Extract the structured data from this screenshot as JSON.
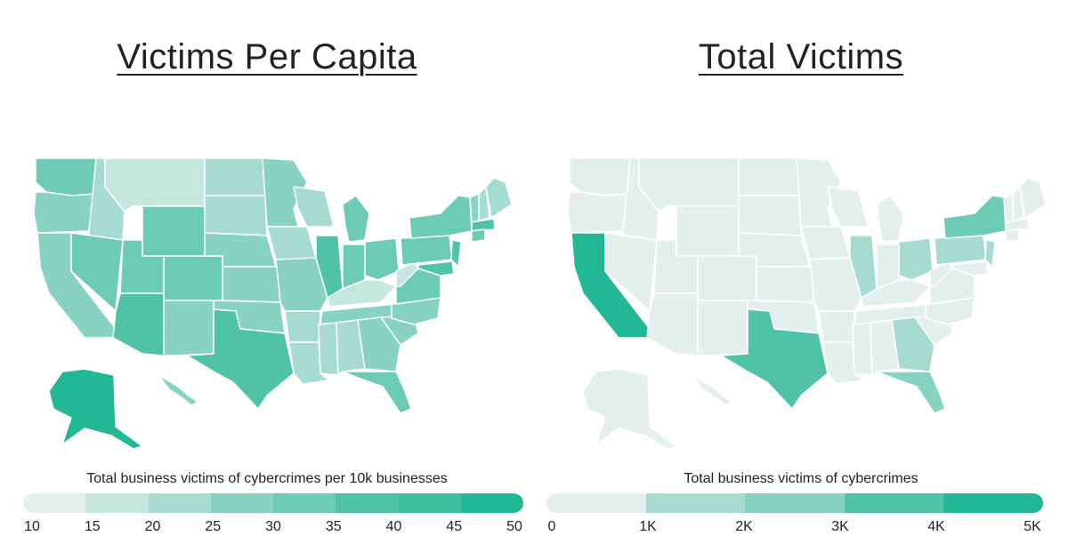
{
  "left_panel": {
    "title": "Victims Per Capita",
    "legend_caption": "Total business victims of cybercrimes per 10k businesses",
    "legend_ticks": [
      "10",
      "15",
      "20",
      "25",
      "30",
      "35",
      "40",
      "45",
      "50"
    ],
    "legend_colors": [
      "#e2efec",
      "#c5e7de",
      "#a6dccf",
      "#87d2c0",
      "#6ccbb4",
      "#4fc2a8",
      "#3dbe9f",
      "#22b795"
    ]
  },
  "right_panel": {
    "title": "Total Victims",
    "legend_caption": "Total business victims of cybercrimes",
    "legend_ticks": [
      "0",
      "1K",
      "2K",
      "3K",
      "4K",
      "5K"
    ],
    "legend_colors": [
      "#e2efec",
      "#a6dccf",
      "#87d2c0",
      "#4fc2a8",
      "#22b795"
    ]
  },
  "colors": {
    "lowest": "#e2efec",
    "highest": "#22b795",
    "border": "#ffffff"
  }
}
